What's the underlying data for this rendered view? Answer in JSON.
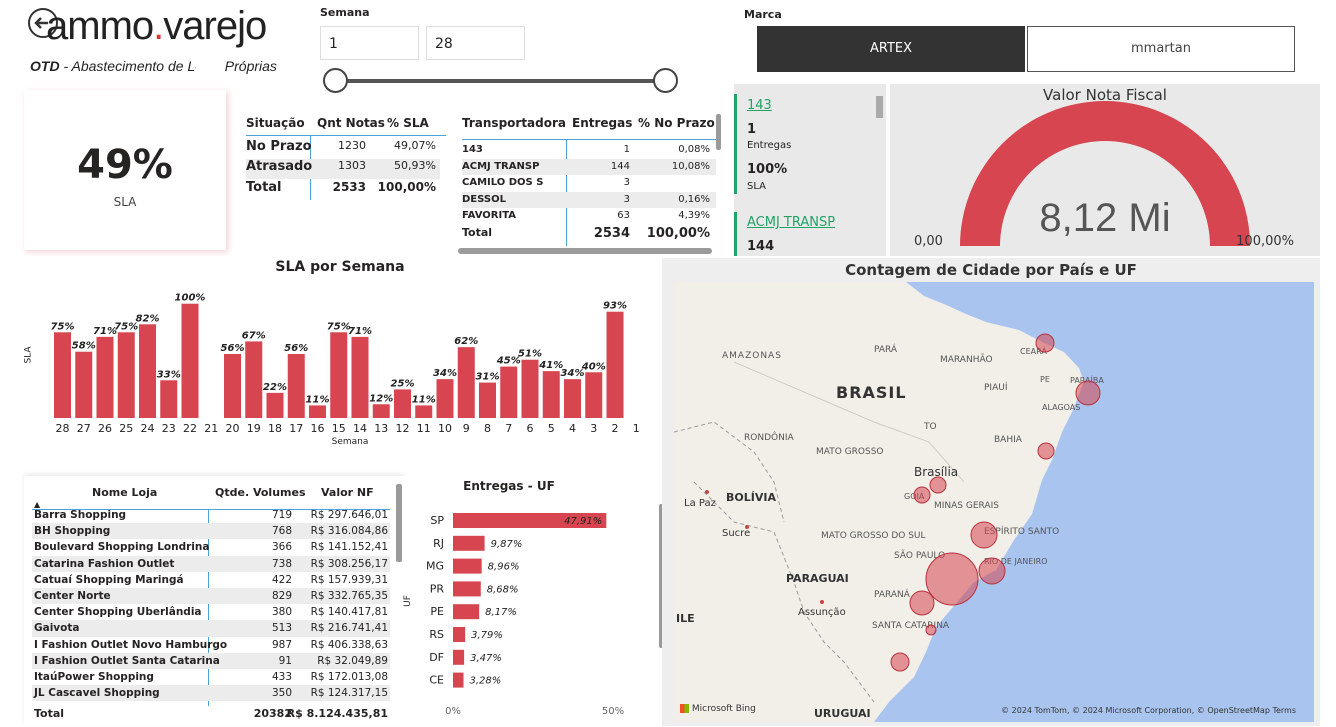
{
  "header": {
    "logo_left": "ammo",
    "logo_dot": ".",
    "logo_right": "varejo",
    "subtitle_bold": "OTD",
    "subtitle_rest": " - Abastecimento de Lojas Próprias"
  },
  "semana_filter": {
    "label": "Semana",
    "from": "1",
    "to": "28"
  },
  "marca_filter": {
    "label": "Marca",
    "options": [
      "ARTEX",
      "mmartan"
    ],
    "selected": "ARTEX"
  },
  "sla_card": {
    "value": "49%",
    "label": "SLA"
  },
  "situacao_table": {
    "headers": [
      "Situação",
      "Qnt Notas",
      "% SLA"
    ],
    "rows": [
      [
        "No Prazo",
        "1230",
        "49,07%"
      ],
      [
        "Atrasado",
        "1303",
        "50,93%"
      ]
    ],
    "total": [
      "Total",
      "2533",
      "100,00%"
    ]
  },
  "transp_table": {
    "headers": [
      "Transportadora",
      "Entregas",
      "% No Prazo"
    ],
    "rows": [
      [
        "143",
        "1",
        "0,08%"
      ],
      [
        "ACMJ TRANSP",
        "144",
        "10,08%"
      ],
      [
        "CAMILO DOS S",
        "3",
        ""
      ],
      [
        "DESSOL",
        "3",
        "0,16%"
      ],
      [
        "FAVORITA",
        "63",
        "4,39%"
      ]
    ],
    "total": [
      "Total",
      "2534",
      "100,00%"
    ]
  },
  "transp_cards": [
    {
      "name": "143",
      "value": "1",
      "value_label": "Entregas",
      "pct": "100%",
      "pct_label": "SLA"
    },
    {
      "name": "ACMJ TRANSP",
      "value": "144"
    }
  ],
  "gauge": {
    "title": "Valor Nota Fiscal",
    "value_text": "8,12 Mi",
    "min": "0,00",
    "max": "100,00%",
    "fill": 1.0,
    "color": "#d64550"
  },
  "sla_chart": {
    "chart_data": {
      "type": "bar",
      "title": "SLA por Semana",
      "xlabel": "Semana",
      "ylabel": "SLA",
      "categories": [
        "28",
        "27",
        "26",
        "25",
        "24",
        "23",
        "22",
        "21",
        "20",
        "19",
        "18",
        "17",
        "16",
        "15",
        "14",
        "13",
        "12",
        "11",
        "10",
        "9",
        "8",
        "7",
        "6",
        "5",
        "4",
        "3",
        "2",
        "1"
      ],
      "values": [
        75,
        58,
        71,
        75,
        82,
        33,
        100,
        0,
        56,
        67,
        22,
        56,
        11,
        75,
        71,
        12,
        25,
        11,
        34,
        62,
        31,
        45,
        51,
        41,
        34,
        40,
        93,
        0
      ],
      "labels": [
        "75%",
        "58%",
        "71%",
        "75%",
        "82%",
        "33%",
        "100%",
        "",
        "56%",
        "67%",
        "22%",
        "56%",
        "11%",
        "75%",
        "71%",
        "12%",
        "25%",
        "11%",
        "34%",
        "62%",
        "31%",
        "45%",
        "51%",
        "41%",
        "34%",
        "40%",
        "93%",
        ""
      ],
      "ylim": [
        0,
        105
      ],
      "color": "#d64550"
    }
  },
  "lojas_table": {
    "headers": [
      "Nome Loja",
      "Qtde. Volumes",
      "Valor NF"
    ],
    "rows": [
      [
        "Barra Shopping",
        "719",
        "R$ 297.646,01"
      ],
      [
        "BH Shopping",
        "768",
        "R$ 316.084,86"
      ],
      [
        "Boulevard Shopping Londrina",
        "366",
        "R$ 141.152,41"
      ],
      [
        "Catarina Fashion Outlet",
        "738",
        "R$ 308.256,17"
      ],
      [
        "Catuaí Shopping Maringá",
        "422",
        "R$ 157.939,31"
      ],
      [
        "Center Norte",
        "829",
        "R$ 332.765,35"
      ],
      [
        "Center Shopping Uberlândia",
        "380",
        "R$ 140.417,81"
      ],
      [
        "Gaivota",
        "513",
        "R$ 216.741,41"
      ],
      [
        "I Fashion Outlet Novo Hamburgo",
        "987",
        "R$ 406.338,63"
      ],
      [
        "I Fashion Outlet Santa Catarina",
        "91",
        "R$ 32.049,89"
      ],
      [
        "ItaúPower Shopping",
        "433",
        "R$ 172.013,08"
      ],
      [
        "JL Cascavel Shopping",
        "350",
        "R$ 124.317,15"
      ]
    ],
    "total": [
      "Total",
      "20382",
      "R$ 8.124.435,81"
    ]
  },
  "uf_chart": {
    "chart_data": {
      "type": "bar",
      "title": "Entregas - UF",
      "ylabel": "UF",
      "categories": [
        "SP",
        "RJ",
        "MG",
        "PR",
        "PE",
        "RS",
        "DF",
        "CE"
      ],
      "values": [
        47.91,
        9.87,
        8.96,
        8.68,
        8.17,
        3.79,
        3.47,
        3.28
      ],
      "labels": [
        "47,91%",
        "9,87%",
        "8,96%",
        "8,68%",
        "8,17%",
        "3,79%",
        "3,47%",
        "3,28%"
      ],
      "xticks": [
        "0%",
        "50%"
      ],
      "xlim": [
        0,
        50
      ],
      "color": "#d64550"
    }
  },
  "map": {
    "title": "Contagem de Cidade por País e UF",
    "labels": [
      "AMAZONAS",
      "PARÁ",
      "MARANHÃO",
      "CEARÁ",
      "PIAUÍ",
      "PE",
      "PARAÍBA",
      "ALAGOAS",
      "BRASIL",
      "TO",
      "BAHIA",
      "RONDÔNIA",
      "MATO GROSSO",
      "Brasília",
      "GOIÁ",
      "BOLÍVIA",
      "La Paz",
      "MINAS GERAIS",
      "Sucre",
      "ESPÍRITO SANTO",
      "MATO GROSSO DO SUL",
      "SÃO PAULO",
      "RIO DE JANEIRO",
      "PARAGUAI",
      "Assunção",
      "PARANÁ",
      "SANTA CATARINA",
      "ILE",
      "URUGUAI"
    ],
    "bing": "Microsoft Bing",
    "copyright": "© 2024 TomTom, © 2024 Microsoft Corporation, © OpenStreetMap  Terms"
  }
}
